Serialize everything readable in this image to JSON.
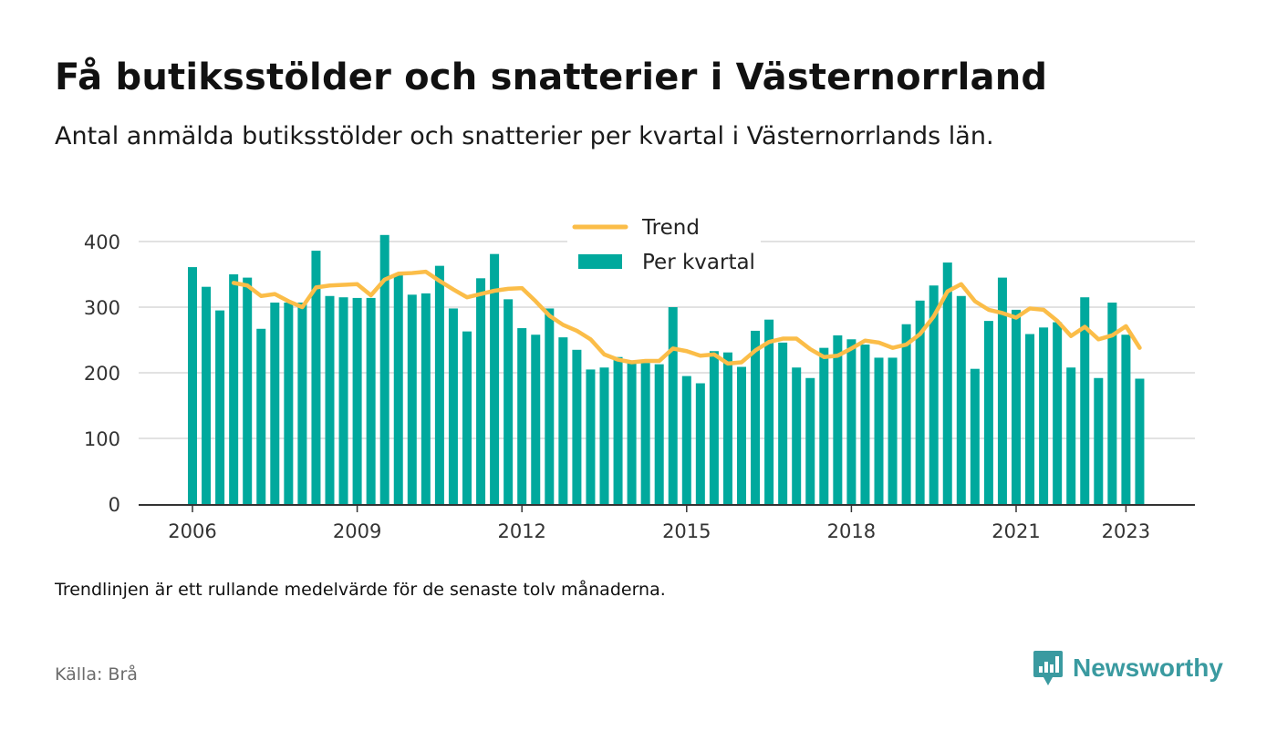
{
  "header": {
    "title": "Få butiksstölder och snatterier i Västernorrland",
    "subtitle": "Antal anmälda butiksstölder och snatterier per kvartal i Västernorrlands län."
  },
  "footer": {
    "note": "Trendlinjen är ett rullande medelvärde för de senaste tolv månaderna.",
    "source": "Källa: Brå",
    "brand": "Newsworthy"
  },
  "colors": {
    "bar": "#00a99d",
    "trend": "#fbbd48",
    "grid": "#d9d9d9",
    "axis": "#333333",
    "brand": "#3a9aa0"
  },
  "chart_data": {
    "type": "bar",
    "x_ticks": [
      "2006",
      "2009",
      "2012",
      "2015",
      "2018",
      "2021",
      "2023"
    ],
    "y_ticks": [
      "0",
      "100",
      "200",
      "300",
      "400"
    ],
    "ylim": [
      0,
      400
    ],
    "legend": {
      "position": "top-center",
      "entries": [
        "Trend",
        "Per kvartal"
      ]
    },
    "grid": true,
    "series": [
      {
        "name": "Per kvartal",
        "type": "bar",
        "x": [
          "2006-Q1",
          "2006-Q2",
          "2006-Q3",
          "2006-Q4",
          "2007-Q1",
          "2007-Q2",
          "2007-Q3",
          "2007-Q4",
          "2008-Q1",
          "2008-Q2",
          "2008-Q3",
          "2008-Q4",
          "2009-Q1",
          "2009-Q2",
          "2009-Q3",
          "2009-Q4",
          "2010-Q1",
          "2010-Q2",
          "2010-Q3",
          "2010-Q4",
          "2011-Q1",
          "2011-Q2",
          "2011-Q3",
          "2011-Q4",
          "2012-Q1",
          "2012-Q2",
          "2012-Q3",
          "2012-Q4",
          "2013-Q1",
          "2013-Q2",
          "2013-Q3",
          "2013-Q4",
          "2014-Q1",
          "2014-Q2",
          "2014-Q3",
          "2014-Q4",
          "2015-Q1",
          "2015-Q2",
          "2015-Q3",
          "2015-Q4",
          "2016-Q1",
          "2016-Q2",
          "2016-Q3",
          "2016-Q4",
          "2017-Q1",
          "2017-Q2",
          "2017-Q3",
          "2017-Q4",
          "2018-Q1",
          "2018-Q2",
          "2018-Q3",
          "2018-Q4",
          "2019-Q1",
          "2019-Q2",
          "2019-Q3",
          "2019-Q4",
          "2020-Q1",
          "2020-Q2",
          "2020-Q3",
          "2020-Q4",
          "2021-Q1",
          "2021-Q2",
          "2021-Q3",
          "2021-Q4",
          "2022-Q1",
          "2022-Q2",
          "2022-Q3",
          "2022-Q4",
          "2023-Q1",
          "2023-Q2"
        ],
        "values": [
          361,
          331,
          295,
          350,
          345,
          267,
          307,
          307,
          307,
          386,
          317,
          315,
          314,
          314,
          410,
          350,
          319,
          321,
          363,
          298,
          263,
          344,
          381,
          312,
          268,
          258,
          298,
          254,
          235,
          205,
          208,
          224,
          217,
          215,
          213,
          300,
          195,
          184,
          233,
          231,
          209,
          264,
          281,
          246,
          208,
          192,
          238,
          257,
          251,
          243,
          223,
          223,
          274,
          310,
          333,
          368,
          317,
          206,
          279,
          345,
          296,
          259,
          269,
          277,
          208,
          315,
          192,
          307,
          258,
          191
        ]
      },
      {
        "name": "Trend",
        "type": "line",
        "x": [
          "2006-Q4",
          "2007-Q1",
          "2007-Q2",
          "2007-Q3",
          "2007-Q4",
          "2008-Q1",
          "2008-Q2",
          "2008-Q3",
          "2008-Q4",
          "2009-Q1",
          "2009-Q2",
          "2009-Q3",
          "2009-Q4",
          "2010-Q1",
          "2010-Q2",
          "2010-Q3",
          "2010-Q4",
          "2011-Q1",
          "2011-Q2",
          "2011-Q3",
          "2011-Q4",
          "2012-Q1",
          "2012-Q2",
          "2012-Q3",
          "2012-Q4",
          "2013-Q1",
          "2013-Q2",
          "2013-Q3",
          "2013-Q4",
          "2014-Q1",
          "2014-Q2",
          "2014-Q3",
          "2014-Q4",
          "2015-Q1",
          "2015-Q2",
          "2015-Q3",
          "2015-Q4",
          "2016-Q1",
          "2016-Q2",
          "2016-Q3",
          "2016-Q4",
          "2017-Q1",
          "2017-Q2",
          "2017-Q3",
          "2017-Q4",
          "2018-Q1",
          "2018-Q2",
          "2018-Q3",
          "2018-Q4",
          "2019-Q1",
          "2019-Q2",
          "2019-Q3",
          "2019-Q4",
          "2020-Q1",
          "2020-Q2",
          "2020-Q3",
          "2020-Q4",
          "2021-Q1",
          "2021-Q2",
          "2021-Q3",
          "2021-Q4",
          "2022-Q1",
          "2022-Q2",
          "2022-Q3",
          "2022-Q4",
          "2023-Q1",
          "2023-Q2"
        ],
        "values": [
          337,
          333,
          317,
          320,
          309,
          300,
          330,
          333,
          334,
          335,
          318,
          342,
          351,
          352,
          354,
          340,
          327,
          315,
          320,
          325,
          328,
          329,
          309,
          287,
          273,
          264,
          251,
          228,
          220,
          216,
          218,
          218,
          237,
          233,
          226,
          228,
          214,
          216,
          234,
          247,
          252,
          252,
          236,
          224,
          226,
          237,
          249,
          246,
          238,
          243,
          259,
          286,
          324,
          335,
          309,
          296,
          291,
          284,
          298,
          296,
          279,
          256,
          270,
          251,
          257,
          271,
          238
        ]
      }
    ]
  }
}
